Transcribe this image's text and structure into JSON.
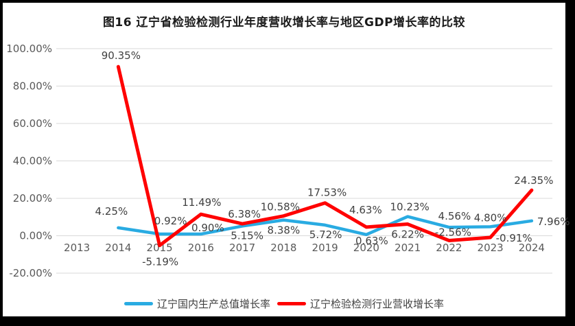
{
  "chart_data": {
    "type": "line",
    "title": "图16  辽宁省检验检测行业年度营收增长率与地区GDP增长率的比较",
    "categories": [
      "2013",
      "2014",
      "2015",
      "2016",
      "2017",
      "2018",
      "2019",
      "2020",
      "2021",
      "2022",
      "2023",
      "2024"
    ],
    "series": [
      {
        "name": "辽宁国内生产总值增长率",
        "color": "#29ABE2",
        "values": [
          null,
          4.25,
          0.92,
          0.9,
          5.15,
          8.38,
          5.72,
          0.63,
          10.23,
          4.56,
          4.8,
          7.96
        ],
        "labels": [
          "",
          "4.25%",
          "0.92%",
          "0.90%",
          "5.15%",
          "8.38%",
          "5.72%",
          "0.63%",
          "10.23%",
          "4.56%",
          "4.80%",
          "7.96%"
        ]
      },
      {
        "name": "辽宁检验检测行业营收增长率",
        "color": "#FF0000",
        "values": [
          null,
          90.35,
          -5.19,
          11.49,
          6.38,
          10.58,
          17.53,
          4.63,
          6.22,
          -2.56,
          -0.91,
          24.35
        ],
        "labels": [
          "",
          "90.35%",
          "-5.19%",
          "11.49%",
          "6.38%",
          "10.58%",
          "17.53%",
          "4.63%",
          "6.22%",
          "-2.56%",
          "-0.91%",
          "24.35%"
        ]
      }
    ],
    "y_axis": {
      "min": -20,
      "max": 100,
      "ticks": [
        {
          "value": 100,
          "label": "100.00%"
        },
        {
          "value": 80,
          "label": "80.00%"
        },
        {
          "value": 60,
          "label": "60.00%"
        },
        {
          "value": 40,
          "label": "40.00%"
        },
        {
          "value": 20,
          "label": "20.00%"
        },
        {
          "value": 0,
          "label": "0.00%"
        },
        {
          "value": -20,
          "label": "-20.00%"
        }
      ]
    },
    "grid": true,
    "data_labels": true,
    "legend_position": "bottom"
  },
  "colors": {
    "frame": "#000000",
    "background": "#FFFFFF",
    "gridline": "#D9D9D9",
    "axis_text": "#595959",
    "data_label_text": "#404040"
  }
}
